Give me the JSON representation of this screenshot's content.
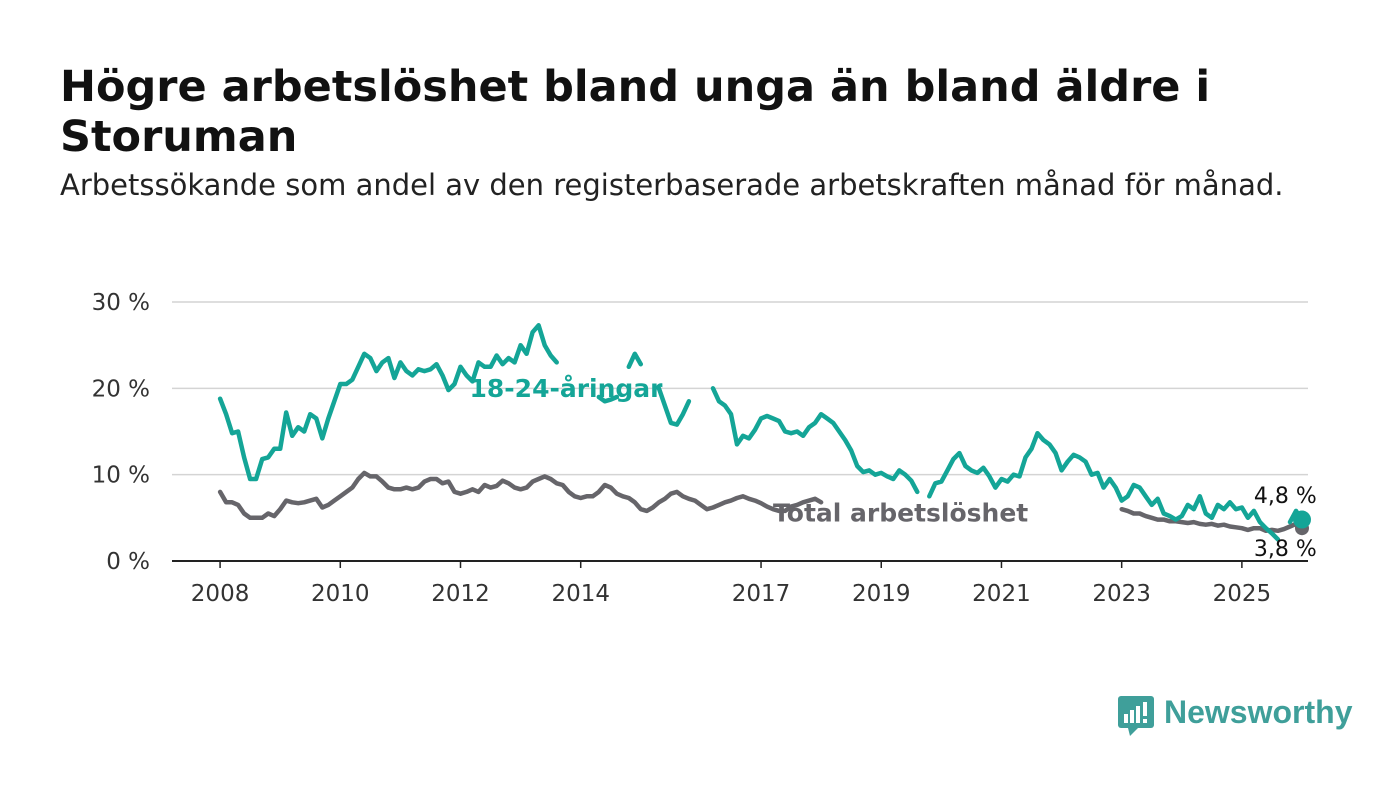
{
  "title": "Högre arbetslöshet bland unga än bland äldre i Storuman",
  "subtitle": "Arbetssökande som andel av den registerbaserade arbetskraften månad för månad.",
  "brand": {
    "name": "Newsworthy",
    "color": "#3f9f9a",
    "icon": "bar-chart-speech-bubble-icon"
  },
  "chart_data": {
    "type": "line",
    "xlim": [
      2007.2,
      2026.1
    ],
    "ylim": [
      0,
      30
    ],
    "x_ticks": [
      {
        "value": 2008,
        "label": "2008"
      },
      {
        "value": 2010,
        "label": "2010"
      },
      {
        "value": 2012,
        "label": "2012"
      },
      {
        "value": 2014,
        "label": "2014"
      },
      {
        "value": 2017,
        "label": "2017"
      },
      {
        "value": 2019,
        "label": "2019"
      },
      {
        "value": 2021,
        "label": "2021"
      },
      {
        "value": 2023,
        "label": "2023"
      },
      {
        "value": 2025,
        "label": "2025"
      }
    ],
    "y_ticks": [
      {
        "value": 0,
        "label": "0 %"
      },
      {
        "value": 10,
        "label": "10 %"
      },
      {
        "value": 20,
        "label": "20 %"
      },
      {
        "value": 30,
        "label": "30 %"
      }
    ],
    "grid": true,
    "series": [
      {
        "name": "18-24-åringar",
        "color": "#14a597",
        "end_value_label": "4,8 %",
        "points": [
          [
            2008.0,
            18.8
          ],
          [
            2008.1,
            17.0
          ],
          [
            2008.2,
            14.8
          ],
          [
            2008.3,
            15.0
          ],
          [
            2008.4,
            12.0
          ],
          [
            2008.5,
            9.5
          ],
          [
            2008.6,
            9.5
          ],
          [
            2008.7,
            11.8
          ],
          [
            2008.8,
            12.0
          ],
          [
            2008.9,
            13.0
          ],
          [
            2009.0,
            13.0
          ],
          [
            2009.1,
            17.2
          ],
          [
            2009.2,
            14.5
          ],
          [
            2009.3,
            15.5
          ],
          [
            2009.4,
            15.0
          ],
          [
            2009.5,
            17.0
          ],
          [
            2009.6,
            16.5
          ],
          [
            2009.7,
            14.2
          ],
          [
            2009.8,
            16.5
          ],
          [
            2009.9,
            18.5
          ],
          [
            2010.0,
            20.5
          ],
          [
            2010.1,
            20.5
          ],
          [
            2010.2,
            21.0
          ],
          [
            2010.3,
            22.5
          ],
          [
            2010.4,
            24.0
          ],
          [
            2010.5,
            23.5
          ],
          [
            2010.6,
            22.0
          ],
          [
            2010.7,
            23.0
          ],
          [
            2010.8,
            23.5
          ],
          [
            2010.9,
            21.2
          ],
          [
            2011.0,
            23.0
          ],
          [
            2011.1,
            22.0
          ],
          [
            2011.2,
            21.5
          ],
          [
            2011.3,
            22.2
          ],
          [
            2011.4,
            22.0
          ],
          [
            2011.5,
            22.2
          ],
          [
            2011.6,
            22.8
          ],
          [
            2011.7,
            21.5
          ],
          [
            2011.8,
            19.8
          ],
          [
            2011.9,
            20.5
          ],
          [
            2012.0,
            22.5
          ],
          [
            2012.1,
            21.5
          ],
          [
            2012.2,
            20.8
          ],
          [
            2012.3,
            23.0
          ],
          [
            2012.4,
            22.5
          ],
          [
            2012.5,
            22.5
          ],
          [
            2012.6,
            23.8
          ],
          [
            2012.7,
            22.8
          ],
          [
            2012.8,
            23.5
          ],
          [
            2012.9,
            23.0
          ],
          [
            2013.0,
            25.0
          ],
          [
            2013.1,
            24.0
          ],
          [
            2013.2,
            26.5
          ],
          [
            2013.3,
            27.3
          ],
          [
            2013.4,
            25.0
          ],
          [
            2013.5,
            23.8
          ],
          [
            2013.6,
            23.0
          ],
          [
            2014.3,
            19.0
          ],
          [
            2014.4,
            18.5
          ],
          [
            2014.5,
            18.7
          ],
          [
            2014.6,
            19.0
          ],
          [
            2014.8,
            22.5
          ],
          [
            2014.9,
            24.0
          ],
          [
            2015.0,
            22.8
          ],
          [
            2015.3,
            20.0
          ],
          [
            2015.4,
            18.0
          ],
          [
            2015.5,
            16.0
          ],
          [
            2015.6,
            15.8
          ],
          [
            2015.7,
            17.0
          ],
          [
            2015.8,
            18.5
          ],
          [
            2016.2,
            20.0
          ],
          [
            2016.3,
            18.5
          ],
          [
            2016.4,
            18.0
          ],
          [
            2016.5,
            17.0
          ],
          [
            2016.6,
            13.5
          ],
          [
            2016.7,
            14.5
          ],
          [
            2016.8,
            14.2
          ],
          [
            2016.9,
            15.2
          ],
          [
            2017.0,
            16.5
          ],
          [
            2017.1,
            16.8
          ],
          [
            2017.2,
            16.5
          ],
          [
            2017.3,
            16.2
          ],
          [
            2017.4,
            15.0
          ],
          [
            2017.5,
            14.8
          ],
          [
            2017.6,
            15.0
          ],
          [
            2017.7,
            14.5
          ],
          [
            2017.8,
            15.5
          ],
          [
            2017.9,
            16.0
          ],
          [
            2018.0,
            17.0
          ],
          [
            2018.1,
            16.5
          ],
          [
            2018.2,
            16.0
          ],
          [
            2018.3,
            15.0
          ],
          [
            2018.4,
            14.0
          ],
          [
            2018.5,
            12.8
          ],
          [
            2018.6,
            11.0
          ],
          [
            2018.7,
            10.3
          ],
          [
            2018.8,
            10.5
          ],
          [
            2018.9,
            10.0
          ],
          [
            2019.0,
            10.2
          ],
          [
            2019.1,
            9.8
          ],
          [
            2019.2,
            9.5
          ],
          [
            2019.3,
            10.5
          ],
          [
            2019.4,
            10.0
          ],
          [
            2019.5,
            9.3
          ],
          [
            2019.6,
            8.0
          ],
          [
            2019.8,
            7.5
          ],
          [
            2019.9,
            9.0
          ],
          [
            2020.0,
            9.2
          ],
          [
            2020.1,
            10.5
          ],
          [
            2020.2,
            11.8
          ],
          [
            2020.3,
            12.5
          ],
          [
            2020.4,
            11.0
          ],
          [
            2020.5,
            10.5
          ],
          [
            2020.6,
            10.2
          ],
          [
            2020.7,
            10.8
          ],
          [
            2020.8,
            9.8
          ],
          [
            2020.9,
            8.5
          ],
          [
            2021.0,
            9.5
          ],
          [
            2021.1,
            9.2
          ],
          [
            2021.2,
            10.0
          ],
          [
            2021.3,
            9.8
          ],
          [
            2021.4,
            12.0
          ],
          [
            2021.5,
            13.0
          ],
          [
            2021.6,
            14.8
          ],
          [
            2021.7,
            14.0
          ],
          [
            2021.8,
            13.5
          ],
          [
            2021.9,
            12.5
          ],
          [
            2022.0,
            10.5
          ],
          [
            2022.1,
            11.5
          ],
          [
            2022.2,
            12.3
          ],
          [
            2022.3,
            12.0
          ],
          [
            2022.4,
            11.5
          ],
          [
            2022.5,
            10.0
          ],
          [
            2022.6,
            10.2
          ],
          [
            2022.7,
            8.5
          ],
          [
            2022.8,
            9.5
          ],
          [
            2022.9,
            8.5
          ],
          [
            2023.0,
            7.0
          ],
          [
            2023.1,
            7.5
          ],
          [
            2023.2,
            8.8
          ],
          [
            2023.3,
            8.5
          ],
          [
            2023.4,
            7.5
          ],
          [
            2023.5,
            6.5
          ],
          [
            2023.6,
            7.2
          ],
          [
            2023.7,
            5.5
          ],
          [
            2023.8,
            5.2
          ],
          [
            2023.9,
            4.8
          ],
          [
            2024.0,
            5.2
          ],
          [
            2024.1,
            6.5
          ],
          [
            2024.2,
            6.0
          ],
          [
            2024.3,
            7.5
          ],
          [
            2024.4,
            5.5
          ],
          [
            2024.5,
            5.0
          ],
          [
            2024.6,
            6.5
          ],
          [
            2024.7,
            6.0
          ],
          [
            2024.8,
            6.8
          ],
          [
            2024.9,
            6.0
          ],
          [
            2025.0,
            6.2
          ],
          [
            2025.1,
            5.0
          ],
          [
            2025.2,
            5.8
          ],
          [
            2025.3,
            4.5
          ],
          [
            2025.4,
            3.8
          ],
          [
            2025.5,
            3.2
          ],
          [
            2025.6,
            2.5
          ],
          [
            2025.8,
            4.5
          ],
          [
            2025.9,
            5.8
          ],
          [
            2026.0,
            4.8
          ]
        ]
      },
      {
        "name": "Total arbetslöshet",
        "color": "#66656a",
        "end_value_label": "3,8 %",
        "points": [
          [
            2008.0,
            8.0
          ],
          [
            2008.1,
            6.8
          ],
          [
            2008.2,
            6.8
          ],
          [
            2008.3,
            6.5
          ],
          [
            2008.4,
            5.5
          ],
          [
            2008.5,
            5.0
          ],
          [
            2008.6,
            5.0
          ],
          [
            2008.7,
            5.0
          ],
          [
            2008.8,
            5.5
          ],
          [
            2008.9,
            5.2
          ],
          [
            2009.0,
            6.0
          ],
          [
            2009.1,
            7.0
          ],
          [
            2009.2,
            6.8
          ],
          [
            2009.3,
            6.7
          ],
          [
            2009.4,
            6.8
          ],
          [
            2009.5,
            7.0
          ],
          [
            2009.6,
            7.2
          ],
          [
            2009.7,
            6.2
          ],
          [
            2009.8,
            6.5
          ],
          [
            2009.9,
            7.0
          ],
          [
            2010.0,
            7.5
          ],
          [
            2010.1,
            8.0
          ],
          [
            2010.2,
            8.5
          ],
          [
            2010.3,
            9.5
          ],
          [
            2010.4,
            10.2
          ],
          [
            2010.5,
            9.8
          ],
          [
            2010.6,
            9.8
          ],
          [
            2010.7,
            9.2
          ],
          [
            2010.8,
            8.5
          ],
          [
            2010.9,
            8.3
          ],
          [
            2011.0,
            8.3
          ],
          [
            2011.1,
            8.5
          ],
          [
            2011.2,
            8.3
          ],
          [
            2011.3,
            8.5
          ],
          [
            2011.4,
            9.2
          ],
          [
            2011.5,
            9.5
          ],
          [
            2011.6,
            9.5
          ],
          [
            2011.7,
            9.0
          ],
          [
            2011.8,
            9.2
          ],
          [
            2011.9,
            8.0
          ],
          [
            2012.0,
            7.8
          ],
          [
            2012.1,
            8.0
          ],
          [
            2012.2,
            8.3
          ],
          [
            2012.3,
            8.0
          ],
          [
            2012.4,
            8.8
          ],
          [
            2012.5,
            8.5
          ],
          [
            2012.6,
            8.7
          ],
          [
            2012.7,
            9.3
          ],
          [
            2012.8,
            9.0
          ],
          [
            2012.9,
            8.5
          ],
          [
            2013.0,
            8.3
          ],
          [
            2013.1,
            8.5
          ],
          [
            2013.2,
            9.2
          ],
          [
            2013.3,
            9.5
          ],
          [
            2013.4,
            9.8
          ],
          [
            2013.5,
            9.5
          ],
          [
            2013.6,
            9.0
          ],
          [
            2013.7,
            8.8
          ],
          [
            2013.8,
            8.0
          ],
          [
            2013.9,
            7.5
          ],
          [
            2014.0,
            7.3
          ],
          [
            2014.1,
            7.5
          ],
          [
            2014.2,
            7.5
          ],
          [
            2014.3,
            8.0
          ],
          [
            2014.4,
            8.8
          ],
          [
            2014.5,
            8.5
          ],
          [
            2014.6,
            7.8
          ],
          [
            2014.7,
            7.5
          ],
          [
            2014.8,
            7.3
          ],
          [
            2014.9,
            6.8
          ],
          [
            2015.0,
            6.0
          ],
          [
            2015.1,
            5.8
          ],
          [
            2015.2,
            6.2
          ],
          [
            2015.3,
            6.8
          ],
          [
            2015.4,
            7.2
          ],
          [
            2015.5,
            7.8
          ],
          [
            2015.6,
            8.0
          ],
          [
            2015.7,
            7.5
          ],
          [
            2015.8,
            7.2
          ],
          [
            2015.9,
            7.0
          ],
          [
            2016.0,
            6.5
          ],
          [
            2016.1,
            6.0
          ],
          [
            2016.2,
            6.2
          ],
          [
            2016.3,
            6.5
          ],
          [
            2016.4,
            6.8
          ],
          [
            2016.5,
            7.0
          ],
          [
            2016.6,
            7.3
          ],
          [
            2016.7,
            7.5
          ],
          [
            2016.8,
            7.2
          ],
          [
            2016.9,
            7.0
          ],
          [
            2017.0,
            6.7
          ],
          [
            2017.1,
            6.3
          ],
          [
            2017.2,
            6.0
          ],
          [
            2017.3,
            5.8
          ],
          [
            2017.4,
            5.8
          ],
          [
            2017.5,
            6.3
          ],
          [
            2017.6,
            6.5
          ],
          [
            2017.7,
            6.8
          ],
          [
            2017.8,
            7.0
          ],
          [
            2017.9,
            7.2
          ],
          [
            2018.0,
            6.8
          ],
          [
            2023.0,
            6.0
          ],
          [
            2023.1,
            5.8
          ],
          [
            2023.2,
            5.5
          ],
          [
            2023.3,
            5.5
          ],
          [
            2023.4,
            5.2
          ],
          [
            2023.5,
            5.0
          ],
          [
            2023.6,
            4.8
          ],
          [
            2023.7,
            4.8
          ],
          [
            2023.8,
            4.6
          ],
          [
            2023.9,
            4.6
          ],
          [
            2024.0,
            4.5
          ],
          [
            2024.1,
            4.4
          ],
          [
            2024.2,
            4.5
          ],
          [
            2024.3,
            4.3
          ],
          [
            2024.4,
            4.2
          ],
          [
            2024.5,
            4.3
          ],
          [
            2024.6,
            4.1
          ],
          [
            2024.7,
            4.2
          ],
          [
            2024.8,
            4.0
          ],
          [
            2024.9,
            3.9
          ],
          [
            2025.0,
            3.8
          ],
          [
            2025.1,
            3.6
          ],
          [
            2025.2,
            3.8
          ],
          [
            2025.3,
            3.8
          ],
          [
            2025.4,
            3.5
          ],
          [
            2025.5,
            3.6
          ],
          [
            2025.6,
            3.5
          ],
          [
            2025.7,
            3.7
          ],
          [
            2025.8,
            4.0
          ],
          [
            2025.9,
            4.3
          ],
          [
            2026.0,
            3.8
          ]
        ]
      }
    ]
  }
}
